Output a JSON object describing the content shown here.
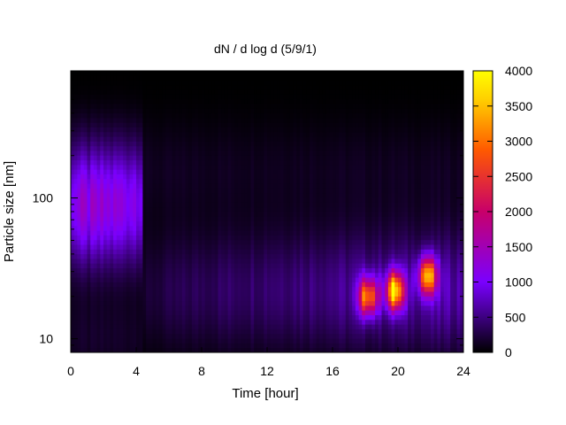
{
  "chart_data": {
    "type": "heatmap",
    "title": "dN / d log d (5/9/1)",
    "xlabel": "Time [hour]",
    "ylabel": "Particle size [nm]",
    "x_range": [
      0,
      24
    ],
    "x_ticks": [
      0,
      4,
      8,
      12,
      16,
      20,
      24
    ],
    "y_scale": "log",
    "y_range": [
      8,
      800
    ],
    "y_ticks": [
      10,
      100
    ],
    "colorbar": {
      "range": [
        0,
        4000
      ],
      "ticks": [
        0,
        500,
        1000,
        1500,
        2000,
        2500,
        3000,
        3500,
        4000
      ],
      "palette": [
        "#000000",
        "#7a00ff",
        "#c8006a",
        "#ff5a00",
        "#ffd000",
        "#ffff00"
      ]
    },
    "features": [
      {
        "description_time_hours": [
          0,
          4.5
        ],
        "size_peak_nm": 90,
        "peak_value": 1200
      },
      {
        "description_time_hours": [
          4.5,
          17
        ],
        "size_peak_nm": 20,
        "peak_value": 700
      },
      {
        "time_hour": 18.2,
        "size_peak_nm": 20,
        "peak_value": 2900
      },
      {
        "time_hour": 19.8,
        "size_peak_nm": 22,
        "peak_value": 3300
      },
      {
        "time_hour": 21.8,
        "size_peak_nm": 28,
        "peak_value": 3000
      }
    ]
  }
}
